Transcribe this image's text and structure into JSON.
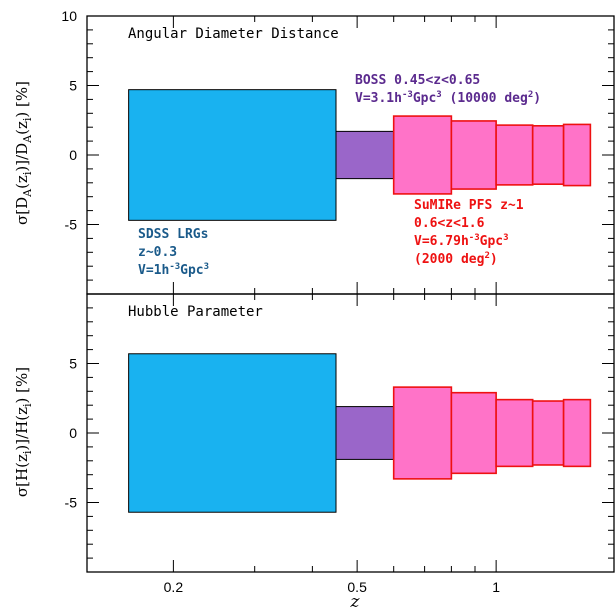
{
  "chart_data": {
    "type": "bar",
    "x_scale": "log",
    "xlim": [
      0.13,
      1.8
    ],
    "ylim": [
      -10,
      10
    ],
    "x_ticks": [
      0.2,
      0.5,
      1
    ],
    "x_tick_labels": [
      "0.2",
      "0.5",
      "1"
    ],
    "y_ticks": [
      -5,
      0,
      5,
      10
    ],
    "y_tick_labels": [
      "-5",
      "0",
      "5",
      "10"
    ],
    "xlabel": "z",
    "colors": {
      "sdss_fill": "#19b2f0",
      "boss_fill": "#9a66c9",
      "boss_text": "#5b2a8e",
      "pfs_fill": "#ff73c8",
      "pfs_edge": "#ee1111",
      "sdss_text": "#1a5a8a"
    },
    "panels": [
      {
        "key": "da",
        "title": "Angular Diameter Distance",
        "ylabel": "σ[D_A(z_i)]/D_A(z_i) [%]",
        "series": [
          {
            "name": "SDSS LRGs",
            "bins": [
              {
                "z_min": 0.16,
                "z_max": 0.45,
                "err": 4.7
              }
            ]
          },
          {
            "name": "BOSS",
            "bins": [
              {
                "z_min": 0.45,
                "z_max": 0.65,
                "err": 1.7
              }
            ]
          },
          {
            "name": "SuMIRe PFS",
            "bins": [
              {
                "z_min": 0.6,
                "z_max": 0.8,
                "err": 2.8
              },
              {
                "z_min": 0.8,
                "z_max": 1.0,
                "err": 2.45
              },
              {
                "z_min": 1.0,
                "z_max": 1.2,
                "err": 2.15
              },
              {
                "z_min": 1.2,
                "z_max": 1.4,
                "err": 2.1
              },
              {
                "z_min": 1.4,
                "z_max": 1.6,
                "err": 2.2
              }
            ]
          }
        ],
        "annotations": [
          {
            "key": "boss",
            "lines": [
              "BOSS 0.45<z<0.65",
              "V=3.1h⁻³Gpc³ (10000 deg²)"
            ]
          },
          {
            "key": "sdss",
            "lines": [
              "SDSS LRGs",
              "z~0.3",
              "V=1h⁻³Gpc³"
            ]
          },
          {
            "key": "pfs",
            "lines": [
              "SuMIRe PFS z~1",
              "0.6<z<1.6",
              "V=6.79h⁻³Gpc³",
              "(2000 deg²)"
            ]
          }
        ]
      },
      {
        "key": "h",
        "title": "Hubble Parameter",
        "ylabel": "σ[H(z_i)]/H(z_i) [%]",
        "series": [
          {
            "name": "SDSS LRGs",
            "bins": [
              {
                "z_min": 0.16,
                "z_max": 0.45,
                "err": 5.7
              }
            ]
          },
          {
            "name": "BOSS",
            "bins": [
              {
                "z_min": 0.45,
                "z_max": 0.65,
                "err": 1.9
              }
            ]
          },
          {
            "name": "SuMIRe PFS",
            "bins": [
              {
                "z_min": 0.6,
                "z_max": 0.8,
                "err": 3.3
              },
              {
                "z_min": 0.8,
                "z_max": 1.0,
                "err": 2.9
              },
              {
                "z_min": 1.0,
                "z_max": 1.2,
                "err": 2.4
              },
              {
                "z_min": 1.2,
                "z_max": 1.4,
                "err": 2.3
              },
              {
                "z_min": 1.4,
                "z_max": 1.6,
                "err": 2.4
              }
            ]
          }
        ]
      }
    ]
  }
}
